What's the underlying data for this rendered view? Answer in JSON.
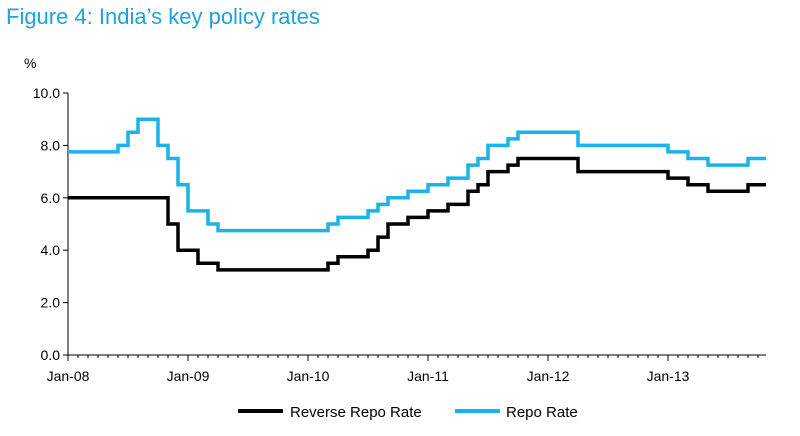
{
  "title": "Figure 4: India’s key policy rates",
  "chart_data": {
    "type": "line",
    "title": "Figure 4: India’s key policy rates",
    "ylabel": "%",
    "xlabel": "",
    "ylim": [
      0,
      10
    ],
    "xlim": [
      "2008-01",
      "2013-10"
    ],
    "yticks": [
      "0.0",
      "2.0",
      "4.0",
      "6.0",
      "8.0",
      "10.0"
    ],
    "xticks": [
      "Jan-08",
      "Jan-09",
      "Jan-10",
      "Jan-11",
      "Jan-12",
      "Jan-13"
    ],
    "grid": false,
    "legend_position": "bottom",
    "series": [
      {
        "name": "Reverse Repo Rate",
        "color": "#000000",
        "step": true,
        "points": [
          [
            "2008-01",
            6.0
          ],
          [
            "2008-11",
            5.0
          ],
          [
            "2008-12",
            4.0
          ],
          [
            "2009-02",
            3.5
          ],
          [
            "2009-04",
            3.25
          ],
          [
            "2010-03",
            3.5
          ],
          [
            "2010-04",
            3.75
          ],
          [
            "2010-07",
            4.0
          ],
          [
            "2010-08",
            4.5
          ],
          [
            "2010-09",
            5.0
          ],
          [
            "2010-11",
            5.25
          ],
          [
            "2011-01",
            5.5
          ],
          [
            "2011-03",
            5.75
          ],
          [
            "2011-05",
            6.25
          ],
          [
            "2011-06",
            6.5
          ],
          [
            "2011-07",
            7.0
          ],
          [
            "2011-09",
            7.25
          ],
          [
            "2011-10",
            7.5
          ],
          [
            "2012-04",
            7.0
          ],
          [
            "2013-01",
            6.75
          ],
          [
            "2013-03",
            6.5
          ],
          [
            "2013-05",
            6.25
          ],
          [
            "2013-09",
            6.5
          ],
          [
            "2013-10",
            6.5
          ]
        ]
      },
      {
        "name": "Repo Rate",
        "color": "#1ab3e8",
        "step": true,
        "points": [
          [
            "2008-01",
            7.75
          ],
          [
            "2008-06",
            8.0
          ],
          [
            "2008-07",
            8.5
          ],
          [
            "2008-08",
            9.0
          ],
          [
            "2008-10",
            8.0
          ],
          [
            "2008-11",
            7.5
          ],
          [
            "2008-12",
            6.5
          ],
          [
            "2009-01",
            5.5
          ],
          [
            "2009-03",
            5.0
          ],
          [
            "2009-04",
            4.75
          ],
          [
            "2010-03",
            5.0
          ],
          [
            "2010-04",
            5.25
          ],
          [
            "2010-07",
            5.5
          ],
          [
            "2010-08",
            5.75
          ],
          [
            "2010-09",
            6.0
          ],
          [
            "2010-11",
            6.25
          ],
          [
            "2011-01",
            6.5
          ],
          [
            "2011-03",
            6.75
          ],
          [
            "2011-05",
            7.25
          ],
          [
            "2011-06",
            7.5
          ],
          [
            "2011-07",
            8.0
          ],
          [
            "2011-09",
            8.25
          ],
          [
            "2011-10",
            8.5
          ],
          [
            "2012-04",
            8.0
          ],
          [
            "2013-01",
            7.75
          ],
          [
            "2013-03",
            7.5
          ],
          [
            "2013-05",
            7.25
          ],
          [
            "2013-09",
            7.5
          ],
          [
            "2013-10",
            7.5
          ]
        ]
      }
    ]
  }
}
